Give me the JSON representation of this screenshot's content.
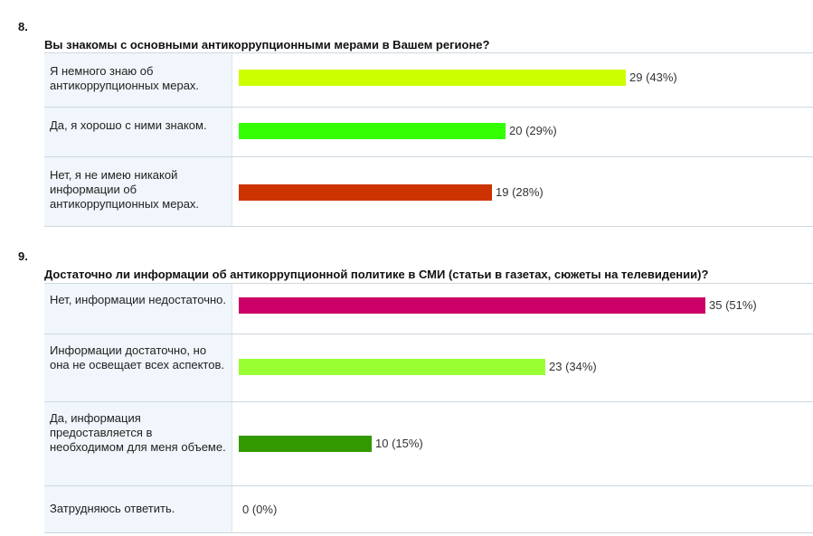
{
  "chart_data": [
    {
      "type": "bar",
      "number": "8.",
      "title": "Вы знакомы с основными антикоррупционными мерами в Вашем регионе?",
      "categories": [
        "Я немного знаю об антикоррупционных мерах.",
        "Да, я хорошо с ними знаком.",
        "Нет, я не имею никакой информации об антикоррупционных мерах."
      ],
      "values": [
        29,
        20,
        19
      ],
      "value_labels": [
        "29 (43%)",
        "20 (29%)",
        "19 (28%)"
      ],
      "colors": [
        "#ccff00",
        "#33ff00",
        "#cc3300"
      ],
      "xlim": [
        0,
        35
      ]
    },
    {
      "type": "bar",
      "number": "9.",
      "title": "Достаточно ли информации об антикоррупционной политике в СМИ (статьи в газетах, сюжеты на телевидении)?",
      "categories": [
        "Нет, информации недостаточно.",
        "Информации достаточно, но она не освещает всех аспектов.",
        "Да, информация предоставляется в необходимом для меня объеме.",
        "Затрудняюсь ответить."
      ],
      "values": [
        35,
        23,
        10,
        0
      ],
      "value_labels": [
        "35 (51%)",
        "23 (34%)",
        "10 (15%)",
        "0 (0%)"
      ],
      "colors": [
        "#cc0066",
        "#99ff33",
        "#339900",
        "#999999"
      ],
      "xlim": [
        0,
        35
      ]
    }
  ]
}
